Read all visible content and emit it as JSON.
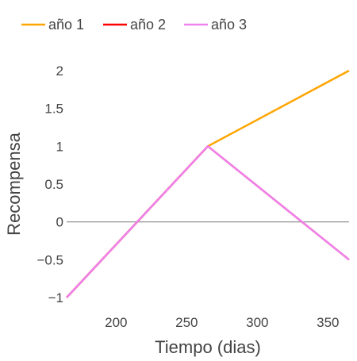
{
  "chart_data": {
    "type": "line",
    "title": "",
    "xlabel": "Tiempo (dias)",
    "ylabel": "Recompensa",
    "xlim": [
      165,
      365
    ],
    "ylim": [
      -1,
      2
    ],
    "x_ticks": [
      200,
      250,
      300,
      350
    ],
    "y_ticks": [
      -1,
      -0.5,
      0,
      0.5,
      1,
      1.5,
      2
    ],
    "y_tick_labels": [
      "−1",
      "−0.5",
      "0",
      "0.5",
      "1",
      "1.5",
      "2"
    ],
    "zero_line": true,
    "grid": false,
    "legend_position": "top",
    "series": [
      {
        "name": "año 1",
        "color": "#FFA500",
        "x": [
          165,
          265,
          365
        ],
        "y": [
          -1,
          1,
          2
        ]
      },
      {
        "name": "año 2",
        "color": "#FF0000",
        "x": [
          165,
          265,
          365
        ],
        "y": [
          -1,
          1,
          -0.5
        ]
      },
      {
        "name": "año 3",
        "color": "#EE82EE",
        "x": [
          165,
          265,
          365
        ],
        "y": [
          -1,
          1,
          -0.5
        ]
      }
    ]
  }
}
